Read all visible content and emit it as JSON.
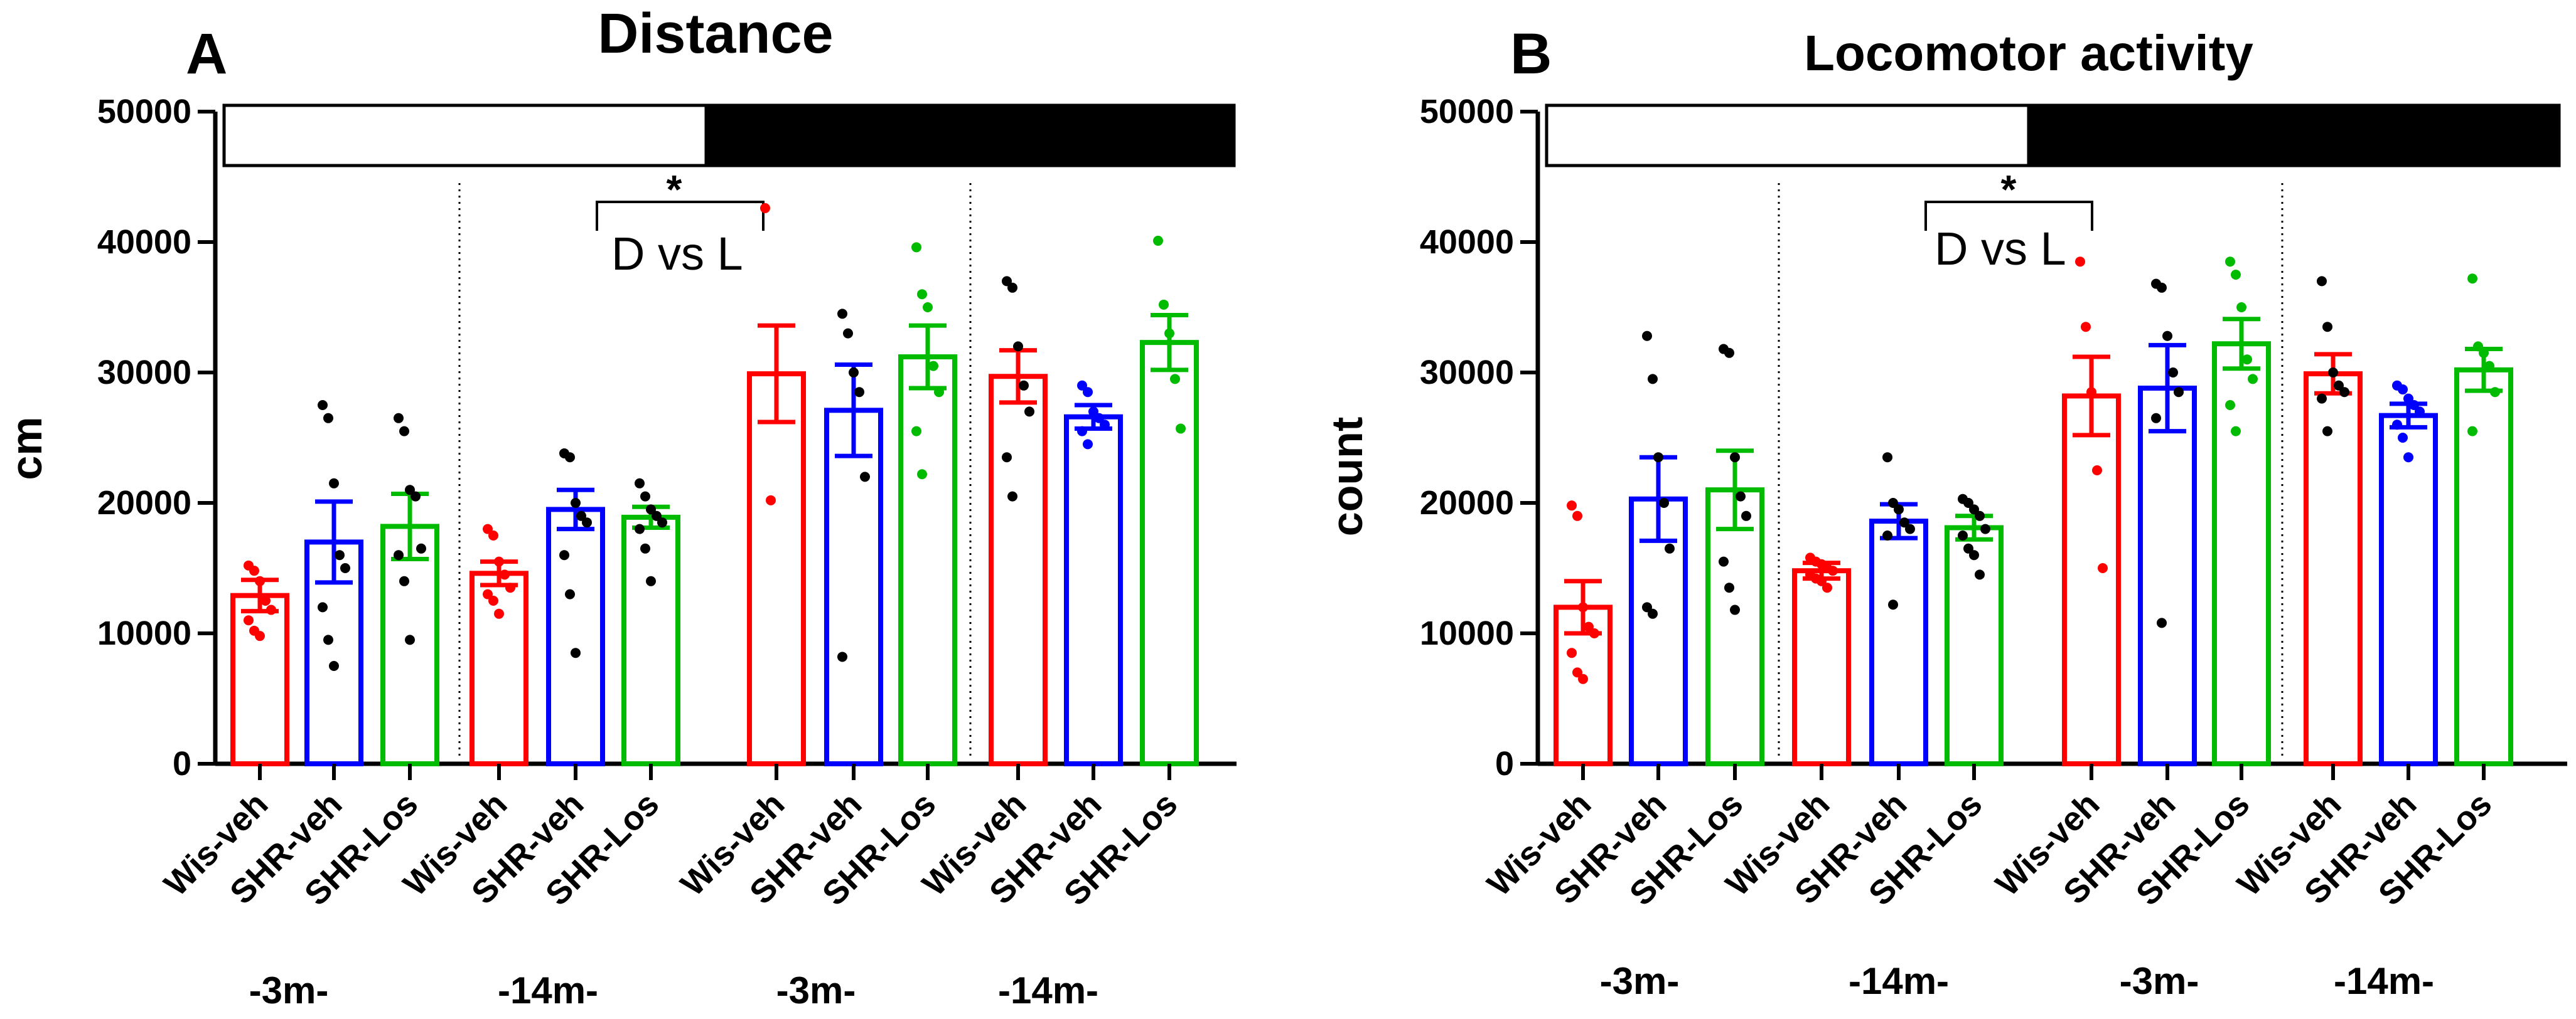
{
  "chart_data": [
    {
      "type": "bar",
      "panel": "A",
      "title": "Distance",
      "ylabel": "cm",
      "ylim": [
        0,
        50000
      ],
      "yticks": [
        "0",
        "10000",
        "20000",
        "30000",
        "40000",
        "50000"
      ],
      "categories": [
        "Wis-veh",
        "SHR-veh",
        "SHR-Los",
        "Wis-veh",
        "SHR-veh",
        "SHR-Los",
        "Wis-veh",
        "SHR-veh",
        "SHR-Los",
        "Wis-veh",
        "SHR-veh",
        "SHR-Los"
      ],
      "group_labels": [
        "-3m-",
        "-14m-",
        "-3m-",
        "-14m-"
      ],
      "light_phase_bar": "light",
      "dark_phase_bar": "dark",
      "annotation": "D vs L",
      "significance": "*",
      "bar_colors": [
        "#ff0000",
        "#0000ff",
        "#00bb00",
        "#ff0000",
        "#0000ff",
        "#00bb00",
        "#ff0000",
        "#0000ff",
        "#00bb00",
        "#ff0000",
        "#0000ff",
        "#00bb00"
      ],
      "point_colors": [
        "#ff0000",
        "#000000",
        "#000000",
        "#ff0000",
        "#000000",
        "#000000",
        "#ff0000",
        "#000000",
        "#00bb00",
        "#000000",
        "#0000ff",
        "#00bb00"
      ],
      "values": [
        12900,
        17000,
        18200,
        14600,
        19500,
        18900,
        29900,
        27100,
        31200,
        29700,
        26600,
        32300
      ],
      "sem": [
        1200,
        3100,
        2500,
        900,
        1500,
        800,
        3700,
        3500,
        2400,
        2000,
        900,
        2100
      ],
      "points": [
        [
          15200,
          14800,
          14000,
          12500,
          11800,
          11000,
          10200,
          9800
        ],
        [
          27500,
          26500,
          21500,
          16000,
          15000,
          12000,
          9500,
          7500
        ],
        [
          26500,
          25500,
          21000,
          20500,
          16500,
          16000,
          14000,
          9500
        ],
        [
          18000,
          17500,
          15500,
          14500,
          13500,
          13000,
          12500,
          11500
        ],
        [
          23800,
          23500,
          20000,
          19000,
          18500,
          16000,
          13000,
          8500
        ],
        [
          21500,
          20500,
          19500,
          19000,
          18500,
          18000,
          16500,
          14000
        ],
        [
          42600,
          20200
        ],
        [
          34500,
          33000,
          30000,
          28500,
          22000,
          8200
        ],
        [
          39600,
          36000,
          35000,
          30500,
          28500,
          25500,
          22200
        ],
        [
          37000,
          36500,
          32000,
          29000,
          27000,
          23500,
          20500
        ],
        [
          29000,
          28500,
          27000,
          26500,
          26000,
          25500,
          24500
        ],
        [
          40100,
          35200,
          33000,
          29500,
          25700
        ]
      ]
    },
    {
      "type": "bar",
      "panel": "B",
      "title": "Locomotor activity",
      "ylabel": "count",
      "ylim": [
        0,
        50000
      ],
      "yticks": [
        "0",
        "10000",
        "20000",
        "30000",
        "40000",
        "50000"
      ],
      "categories": [
        "Wis-veh",
        "SHR-veh",
        "SHR-Los",
        "Wis-veh",
        "SHR-veh",
        "SHR-Los",
        "Wis-veh",
        "SHR-veh",
        "SHR-Los",
        "Wis-veh",
        "SHR-veh",
        "SHR-Los"
      ],
      "group_labels": [
        "-3m-",
        "-14m-",
        "-3m-",
        "-14m-"
      ],
      "light_phase_bar": "light",
      "dark_phase_bar": "dark",
      "annotation": "D vs L",
      "significance": "*",
      "bar_colors": [
        "#ff0000",
        "#0000ff",
        "#00bb00",
        "#ff0000",
        "#0000ff",
        "#00bb00",
        "#ff0000",
        "#0000ff",
        "#00bb00",
        "#ff0000",
        "#0000ff",
        "#00bb00"
      ],
      "point_colors": [
        "#ff0000",
        "#000000",
        "#000000",
        "#ff0000",
        "#000000",
        "#000000",
        "#ff0000",
        "#000000",
        "#00bb00",
        "#000000",
        "#0000ff",
        "#00bb00"
      ],
      "values": [
        12000,
        20300,
        21000,
        14800,
        18600,
        18100,
        28200,
        28800,
        32200,
        29900,
        26700,
        30200
      ],
      "sem": [
        2000,
        3200,
        3000,
        600,
        1300,
        900,
        3000,
        3300,
        1900,
        1500,
        900,
        1600
      ],
      "points": [
        [
          19800,
          19000,
          12000,
          10500,
          10000,
          8500,
          7000,
          6500
        ],
        [
          32800,
          29500,
          23500,
          20000,
          16500,
          12000,
          11500
        ],
        [
          31800,
          31500,
          23500,
          20500,
          19000,
          15500,
          13500,
          11800
        ],
        [
          15800,
          15500,
          15300,
          15000,
          14800,
          14500,
          14200,
          14000,
          13500
        ],
        [
          23500,
          20000,
          19500,
          18500,
          18000,
          17500,
          12200
        ],
        [
          20300,
          20000,
          19500,
          19000,
          18000,
          17500,
          16500,
          16000,
          14500
        ],
        [
          38500,
          33500,
          28500,
          22500,
          15000
        ],
        [
          36800,
          36500,
          32800,
          30000,
          28500,
          26500,
          10800
        ],
        [
          38500,
          37500,
          35000,
          31000,
          29500,
          27500,
          25500
        ],
        [
          37000,
          33500,
          30000,
          29000,
          28500,
          28000,
          25500
        ],
        [
          29000,
          28700,
          28000,
          27500,
          27000,
          26000,
          25000,
          23500
        ],
        [
          37200,
          32000,
          31500,
          30500,
          28500,
          25500
        ]
      ]
    }
  ]
}
